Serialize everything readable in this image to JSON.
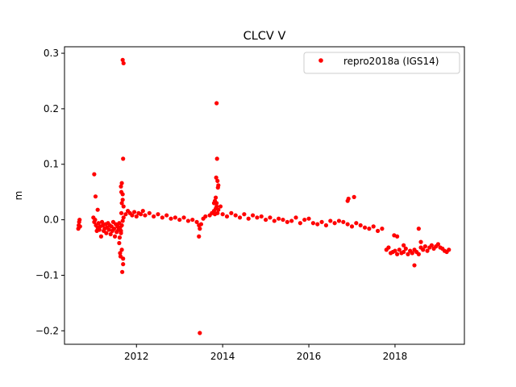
{
  "chart_data": {
    "type": "scatter",
    "title": "CLCV V",
    "xlabel": "",
    "ylabel": "m",
    "xlim": [
      2010.33,
      2019.61
    ],
    "ylim": [
      -0.2243,
      0.3117
    ],
    "x_ticks": [
      2012,
      2014,
      2016,
      2018
    ],
    "x_tick_labels": [
      "2012",
      "2014",
      "2016",
      "2018"
    ],
    "y_ticks": [
      -0.2,
      -0.1,
      0.0,
      0.1,
      0.2,
      0.3
    ],
    "y_tick_labels": [
      "−0.2",
      "−0.1",
      "0.0",
      "0.1",
      "0.2",
      "0.3"
    ],
    "grid": false,
    "legend_position": "upper right",
    "series": [
      {
        "name": "repro2018a (IGS14)",
        "color": "#ff0000",
        "marker": "circle",
        "x": [
          2010.65,
          2010.66,
          2010.67,
          2010.68,
          2010.69,
          2011.0,
          2011.02,
          2011.04,
          2011.06,
          2011.08,
          2011.1,
          2011.12,
          2011.14,
          2011.16,
          2011.18,
          2011.2,
          2011.22,
          2011.24,
          2011.26,
          2011.28,
          2011.3,
          2011.32,
          2011.34,
          2011.36,
          2011.38,
          2011.4,
          2011.42,
          2011.44,
          2011.46,
          2011.48,
          2011.5,
          2011.52,
          2011.54,
          2011.56,
          2011.58,
          2011.6,
          2011.62,
          2011.64,
          2011.66,
          2011.68,
          2011.7,
          2011.05,
          2011.02,
          2011.1,
          2011.6,
          2011.62,
          2011.64,
          2011.65,
          2011.66,
          2011.67,
          2011.68,
          2011.69,
          2011.7,
          2011.63,
          2011.61,
          2011.64,
          2011.66,
          2011.68,
          2011.65,
          2011.69,
          2011.66,
          2011.75,
          2011.8,
          2011.85,
          2011.9,
          2011.95,
          2012.0,
          2012.05,
          2012.1,
          2012.15,
          2012.2,
          2012.3,
          2012.4,
          2012.5,
          2012.6,
          2012.7,
          2012.8,
          2012.9,
          2013.0,
          2013.1,
          2013.2,
          2013.3,
          2013.4,
          2013.45,
          2013.47,
          2013.5,
          2013.55,
          2013.6,
          2013.7,
          2013.75,
          2013.8,
          2013.82,
          2013.84,
          2013.86,
          2013.88,
          2013.9,
          2014.0,
          2014.1,
          2014.2,
          2014.3,
          2014.4,
          2014.5,
          2014.6,
          2014.7,
          2014.8,
          2014.9,
          2015.0,
          2015.1,
          2015.2,
          2015.3,
          2015.4,
          2015.5,
          2015.6,
          2015.7,
          2015.8,
          2015.9,
          2016.0,
          2016.1,
          2016.2,
          2016.3,
          2016.4,
          2016.5,
          2016.6,
          2016.7,
          2016.8,
          2016.9,
          2017.0,
          2017.1,
          2017.2,
          2017.3,
          2017.4,
          2017.5,
          2017.6,
          2017.7,
          2011.68,
          2011.7,
          2011.69,
          2013.45,
          2013.47,
          2013.86,
          2013.87,
          2013.85,
          2013.88,
          2013.89,
          2013.84,
          2013.9,
          2013.95,
          2013.8,
          2016.9,
          2016.92,
          2017.05,
          2013.82,
          2013.86,
          2017.8,
          2017.85,
          2017.9,
          2017.95,
          2018.0,
          2018.05,
          2018.1,
          2018.15,
          2018.2,
          2018.25,
          2018.3,
          2018.35,
          2018.4,
          2018.45,
          2018.5,
          2018.55,
          2018.6,
          2018.65,
          2018.7,
          2018.75,
          2018.8,
          2018.85,
          2018.9,
          2018.95,
          2019.0,
          2019.05,
          2019.1,
          2019.15,
          2019.2,
          2019.25,
          2017.98,
          2018.05,
          2018.45,
          2018.55,
          2018.2,
          2018.6
        ],
        "y": [
          -0.016,
          -0.01,
          -0.004,
          0.0,
          -0.012,
          0.004,
          -0.004,
          0.0,
          -0.01,
          -0.02,
          -0.014,
          -0.006,
          -0.018,
          -0.012,
          -0.03,
          -0.004,
          -0.01,
          -0.02,
          -0.016,
          -0.008,
          -0.024,
          -0.014,
          -0.006,
          -0.018,
          -0.01,
          -0.026,
          -0.012,
          -0.02,
          -0.004,
          -0.016,
          -0.03,
          -0.008,
          -0.022,
          -0.012,
          -0.018,
          -0.006,
          -0.014,
          -0.024,
          -0.01,
          -0.002,
          0.004,
          0.042,
          0.082,
          0.018,
          -0.042,
          -0.06,
          -0.02,
          0.05,
          0.066,
          -0.094,
          0.036,
          -0.08,
          0.024,
          -0.066,
          -0.032,
          0.06,
          -0.054,
          0.046,
          0.012,
          -0.07,
          0.03,
          0.01,
          0.016,
          0.012,
          0.008,
          0.014,
          0.006,
          0.012,
          0.01,
          0.016,
          0.008,
          0.012,
          0.006,
          0.01,
          0.004,
          0.008,
          0.002,
          0.004,
          0.0,
          0.004,
          -0.002,
          0.0,
          -0.004,
          -0.01,
          -0.016,
          -0.008,
          0.002,
          0.006,
          0.008,
          0.012,
          0.016,
          0.01,
          0.02,
          0.024,
          0.012,
          0.018,
          0.01,
          0.006,
          0.012,
          0.008,
          0.004,
          0.01,
          0.002,
          0.008,
          0.004,
          0.006,
          0.0,
          0.004,
          -0.002,
          0.002,
          0.0,
          -0.004,
          -0.002,
          0.004,
          -0.006,
          0.0,
          0.002,
          -0.006,
          -0.008,
          -0.004,
          -0.01,
          -0.002,
          -0.006,
          -0.002,
          -0.004,
          -0.008,
          -0.012,
          -0.006,
          -0.01,
          -0.014,
          -0.016,
          -0.012,
          -0.02,
          -0.016,
          0.288,
          0.282,
          0.11,
          -0.03,
          -0.204,
          0.21,
          0.11,
          0.076,
          0.07,
          0.058,
          0.04,
          0.062,
          0.024,
          0.03,
          0.034,
          0.038,
          0.041,
          0.034,
          0.03,
          -0.054,
          -0.05,
          -0.06,
          -0.058,
          -0.056,
          -0.062,
          -0.054,
          -0.06,
          -0.058,
          -0.052,
          -0.062,
          -0.056,
          -0.06,
          -0.054,
          -0.058,
          -0.062,
          -0.05,
          -0.054,
          -0.048,
          -0.056,
          -0.05,
          -0.046,
          -0.052,
          -0.048,
          -0.044,
          -0.05,
          -0.052,
          -0.056,
          -0.058,
          -0.054,
          -0.028,
          -0.03,
          -0.082,
          -0.016,
          -0.046,
          -0.04
        ]
      }
    ]
  }
}
